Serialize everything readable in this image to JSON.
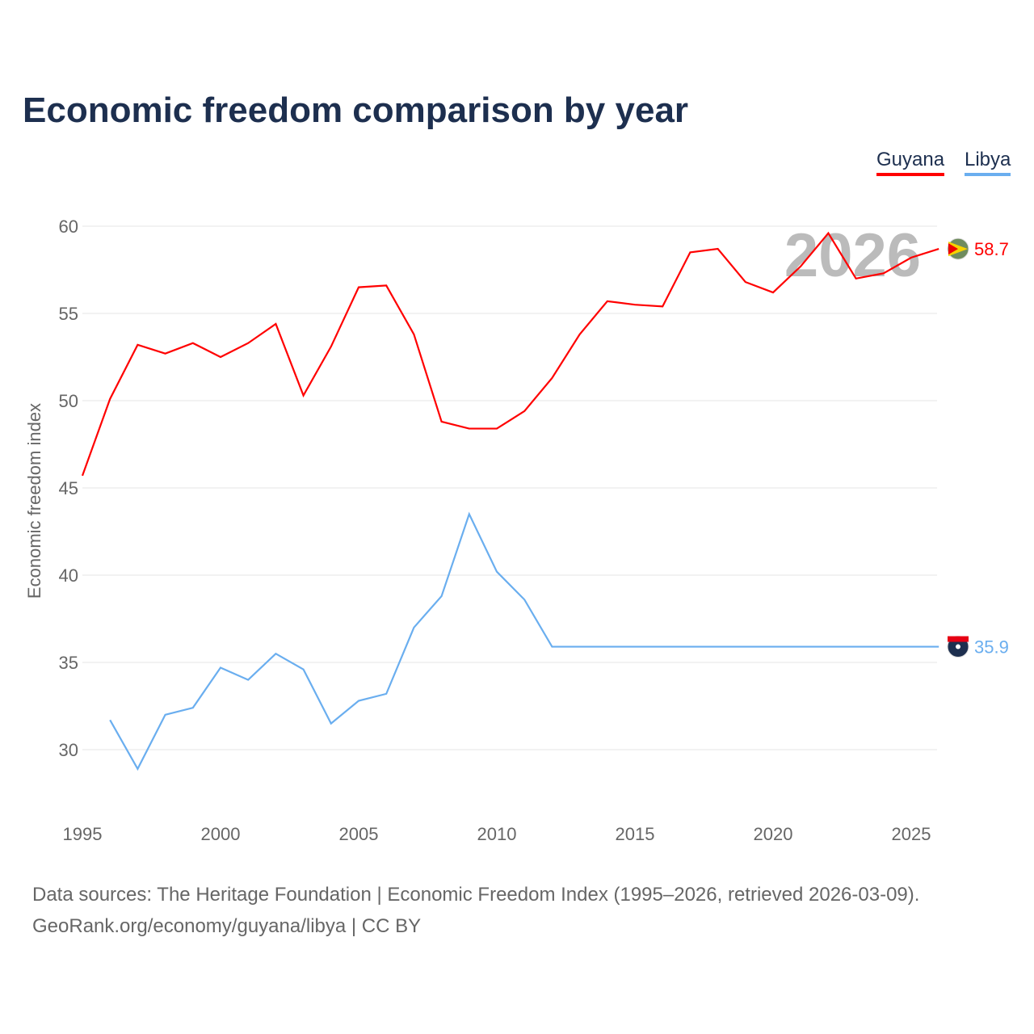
{
  "title": "Economic freedom comparison by year",
  "legend": {
    "guyana": "Guyana",
    "libya": "Libya"
  },
  "footer": {
    "line1": "Data sources: The Heritage Foundation | Economic Freedom Index (1995–2026, retrieved 2026-03-09).",
    "line2": "GeoRank.org/economy/guyana/libya | CC BY"
  },
  "chart_data": {
    "type": "line",
    "title": "Economic freedom comparison by year",
    "xlabel": "",
    "ylabel": "Economic freedom index",
    "year_label": "2026",
    "xlim": [
      1995,
      2026
    ],
    "ylim": [
      26.5,
      61
    ],
    "xticks": [
      1995,
      2000,
      2005,
      2010,
      2015,
      2020,
      2025
    ],
    "yticks": [
      30,
      35,
      40,
      45,
      50,
      55,
      60
    ],
    "series": [
      {
        "name": "Guyana",
        "color": "#ff0000",
        "end_label": "58.7",
        "x": [
          1995,
          1996,
          1997,
          1998,
          1999,
          2000,
          2001,
          2002,
          2003,
          2004,
          2005,
          2006,
          2007,
          2008,
          2009,
          2010,
          2011,
          2012,
          2013,
          2014,
          2015,
          2016,
          2017,
          2018,
          2019,
          2020,
          2021,
          2022,
          2023,
          2024,
          2025,
          2026
        ],
        "values": [
          45.7,
          50.1,
          53.2,
          52.7,
          53.3,
          52.5,
          53.3,
          54.4,
          50.3,
          53.1,
          56.5,
          56.6,
          53.8,
          48.8,
          48.4,
          48.4,
          49.4,
          51.3,
          53.8,
          55.7,
          55.5,
          55.4,
          58.5,
          58.7,
          56.8,
          56.2,
          57.7,
          59.6,
          57.0,
          57.3,
          58.2,
          58.7
        ]
      },
      {
        "name": "Libya",
        "color": "#6aaeef",
        "end_label": "35.9",
        "x": [
          1996,
          1997,
          1998,
          1999,
          2000,
          2001,
          2002,
          2003,
          2004,
          2005,
          2006,
          2007,
          2008,
          2009,
          2010,
          2011,
          2012,
          2013,
          2014,
          2015,
          2016,
          2017,
          2018,
          2019,
          2020,
          2021,
          2022,
          2023,
          2024,
          2025,
          2026
        ],
        "values": [
          31.7,
          28.9,
          32.0,
          32.4,
          34.7,
          34.0,
          35.5,
          34.6,
          31.5,
          32.8,
          33.2,
          37.0,
          38.8,
          43.5,
          40.2,
          38.6,
          35.9,
          35.9,
          35.9,
          35.9,
          35.9,
          35.9,
          35.9,
          35.9,
          35.9,
          35.9,
          35.9,
          35.9,
          35.9,
          35.9,
          35.9
        ]
      }
    ]
  }
}
